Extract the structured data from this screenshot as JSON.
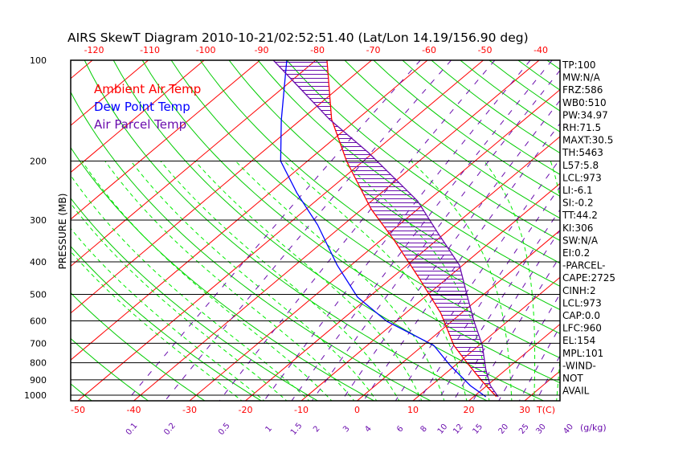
{
  "chart_data": {
    "type": "line",
    "title": "AIRS SkewT Diagram 2010-10-21/02:52:51.40 (Lat/Lon 14.19/156.90 deg)",
    "ylabel": "PRESSURE (MB)",
    "xlabel": "T(C)",
    "mixing_ratio_label": "(g/kg)",
    "ylim": [
      1040,
      100
    ],
    "pressure_ticks": [
      100,
      200,
      300,
      400,
      500,
      600,
      700,
      800,
      900,
      1000
    ],
    "top_temp_ticks": [
      -120,
      -110,
      -100,
      -90,
      -80,
      -70,
      -60,
      -50,
      -40
    ],
    "bottom_temp_ticks": [
      -50,
      -40,
      -30,
      -20,
      -10,
      0,
      10,
      20,
      30
    ],
    "mixing_ratio_ticks": [
      "0.1",
      "0.2",
      "0.5",
      "1",
      "1.5",
      "2",
      "3",
      "4",
      "6",
      "8",
      "10",
      "12",
      "15",
      "20",
      "25",
      "30",
      "40"
    ],
    "legend": [
      {
        "name": "Ambient Air Temp",
        "color": "#ff0000"
      },
      {
        "name": "Dew Point Temp",
        "color": "#0000ff"
      },
      {
        "name": "Air Parcel Temp",
        "color": "#6a0dad"
      }
    ],
    "series": [
      {
        "name": "Ambient Air Temp",
        "color": "#ff0000",
        "p": [
          100,
          150,
          200,
          278,
          346,
          444,
          569,
          710,
          793,
          910,
          1011
        ],
        "t": [
          -78,
          -64.6,
          -53,
          -38.4,
          -27.4,
          -15.4,
          -3.7,
          5.5,
          11.1,
          18.3,
          24.1
        ]
      },
      {
        "name": "Dew Point Temp",
        "color": "#0000ff",
        "p": [
          100,
          151,
          200,
          249,
          310,
          409,
          510,
          602,
          710,
          815,
          936,
          1011
        ],
        "t": [
          -85.2,
          -73.4,
          -64.8,
          -55.1,
          -44.6,
          -32.5,
          -22,
          -11.6,
          1.9,
          9.1,
          17,
          22.2
        ]
      },
      {
        "name": "Air Parcel Temp",
        "color": "#6a0dad",
        "p": [
          100,
          150,
          189,
          263,
          328,
          409,
          510,
          602,
          710,
          839,
          936,
          1011
        ],
        "t": [
          -87.6,
          -65,
          -50.8,
          -31.8,
          -21.3,
          -10.6,
          -2.3,
          4,
          10.6,
          16.4,
          20.6,
          24.4
        ]
      }
    ],
    "indices": [
      "TP:100",
      "MW:N/A",
      "FRZ:586",
      "WB0:510",
      "PW:34.97",
      "RH:71.5",
      "MAXT:30.5",
      "TH:5463",
      "L57:5.8",
      "LCL:973",
      "LI:-6.1",
      "SI:-0.2",
      "TT:44.2",
      "KI:306",
      "SW:N/A",
      "EI:0.2",
      "-PARCEL-",
      "CAPE:2725",
      "CINH:2",
      "LCL:973",
      "CAP:0.0",
      "LFC:960",
      "EL:154",
      "MPL:101",
      "-WIND-",
      "NOT",
      "AVAIL"
    ]
  }
}
